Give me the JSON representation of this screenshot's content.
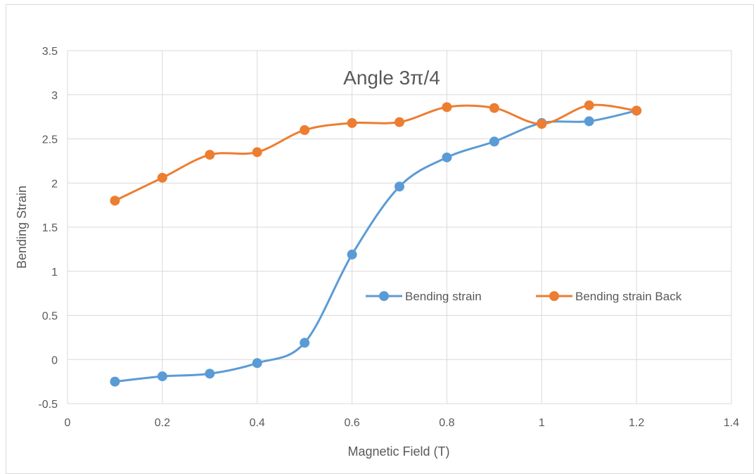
{
  "chart_data": {
    "type": "scatter",
    "title": "Angle 3π/4",
    "xlabel": "Magnetic Field (T)",
    "ylabel": "Bending Strain",
    "xlim": [
      0,
      1.4
    ],
    "ylim": [
      -0.5,
      3.5
    ],
    "x_ticks": [
      "0",
      "0.2",
      "0.4",
      "0.6",
      "0.8",
      "1",
      "1.2",
      "1.4"
    ],
    "y_ticks": [
      "-0.5",
      "0",
      "0.5",
      "1",
      "1.5",
      "2",
      "2.5",
      "3",
      "3.5"
    ],
    "grid": true,
    "line_style": "smooth with markers",
    "legend_position": "inside-right",
    "series": [
      {
        "name": "Bending strain",
        "color": "#5b9bd5",
        "x": [
          0.1,
          0.2,
          0.3,
          0.4,
          0.5,
          0.6,
          0.7,
          0.8,
          0.9,
          1.0,
          1.1,
          1.2
        ],
        "y": [
          -0.25,
          -0.19,
          -0.16,
          -0.04,
          0.19,
          1.19,
          1.96,
          2.29,
          2.47,
          2.68,
          2.7,
          2.82
        ]
      },
      {
        "name": "Bending strain Back",
        "color": "#ed7d31",
        "x": [
          0.1,
          0.2,
          0.3,
          0.4,
          0.5,
          0.6,
          0.7,
          0.8,
          0.9,
          1.0,
          1.1,
          1.2
        ],
        "y": [
          1.8,
          2.06,
          2.32,
          2.35,
          2.6,
          2.68,
          2.69,
          2.86,
          2.85,
          2.67,
          2.88,
          2.82
        ]
      }
    ]
  }
}
